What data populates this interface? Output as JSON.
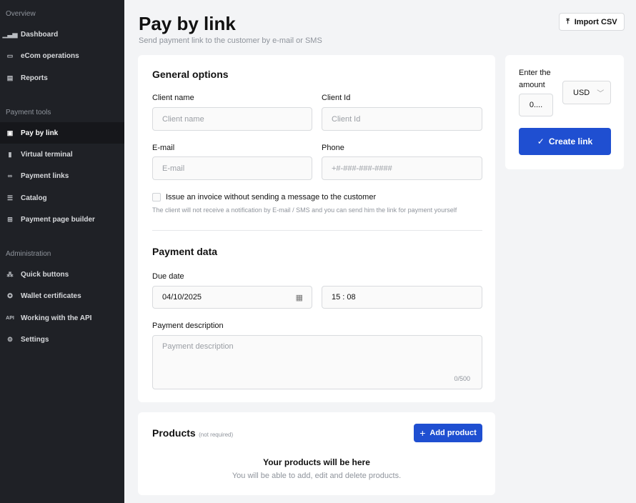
{
  "sidebar": {
    "sections": [
      {
        "label": "Overview"
      },
      {
        "label": "Payment tools"
      },
      {
        "label": "Administration"
      }
    ],
    "items": [
      {
        "label": "Dashboard",
        "icon": "bar-chart-icon"
      },
      {
        "label": "eCom operations",
        "icon": "wallet-icon"
      },
      {
        "label": "Reports",
        "icon": "report-icon"
      },
      {
        "label": "Pay by link",
        "icon": "invoice-icon",
        "active": true
      },
      {
        "label": "Virtual terminal",
        "icon": "terminal-icon"
      },
      {
        "label": "Payment links",
        "icon": "link-icon"
      },
      {
        "label": "Catalog",
        "icon": "list-icon"
      },
      {
        "label": "Payment page builder",
        "icon": "grid-plus-icon"
      },
      {
        "label": "Quick buttons",
        "icon": "click-icon"
      },
      {
        "label": "Wallet certificates",
        "icon": "certificate-icon"
      },
      {
        "label": "Working with the API",
        "icon": "api-icon",
        "icon_text": "API"
      },
      {
        "label": "Settings",
        "icon": "gear-icon"
      }
    ]
  },
  "header": {
    "title": "Pay by link",
    "subtitle": "Send payment link to the customer by e-mail or SMS",
    "import_label": "Import CSV"
  },
  "general": {
    "title": "General options",
    "client_name": {
      "label": "Client name",
      "placeholder": "Client name"
    },
    "client_id": {
      "label": "Client Id",
      "placeholder": "Client Id"
    },
    "email": {
      "label": "E-mail",
      "placeholder": "E-mail"
    },
    "phone": {
      "label": "Phone",
      "placeholder": "+#-###-###-####"
    },
    "checkbox_label": "Issue an invoice without sending a message to the customer",
    "checkbox_hint": "The client will not receive a notification by E-mail / SMS and you can send him the link for payment yourself",
    "checkbox_checked": false
  },
  "payment": {
    "title": "Payment data",
    "due_label": "Due date",
    "due_date": "04/10/2025",
    "hour": "15",
    "minute": "08",
    "desc_label": "Payment description",
    "desc_placeholder": "Payment description",
    "desc_counter": "0/500"
  },
  "products": {
    "title": "Products",
    "note": "(not required)",
    "add_label": "Add product",
    "empty_title": "Your products will be here",
    "empty_sub": "You will be able to add, edit and delete products."
  },
  "amount": {
    "label": "Enter the amount",
    "value": "0....",
    "currency": "USD",
    "create_label": "Create link"
  },
  "colors": {
    "accent": "#1f4fd1",
    "sidebar": "#1f2126"
  }
}
